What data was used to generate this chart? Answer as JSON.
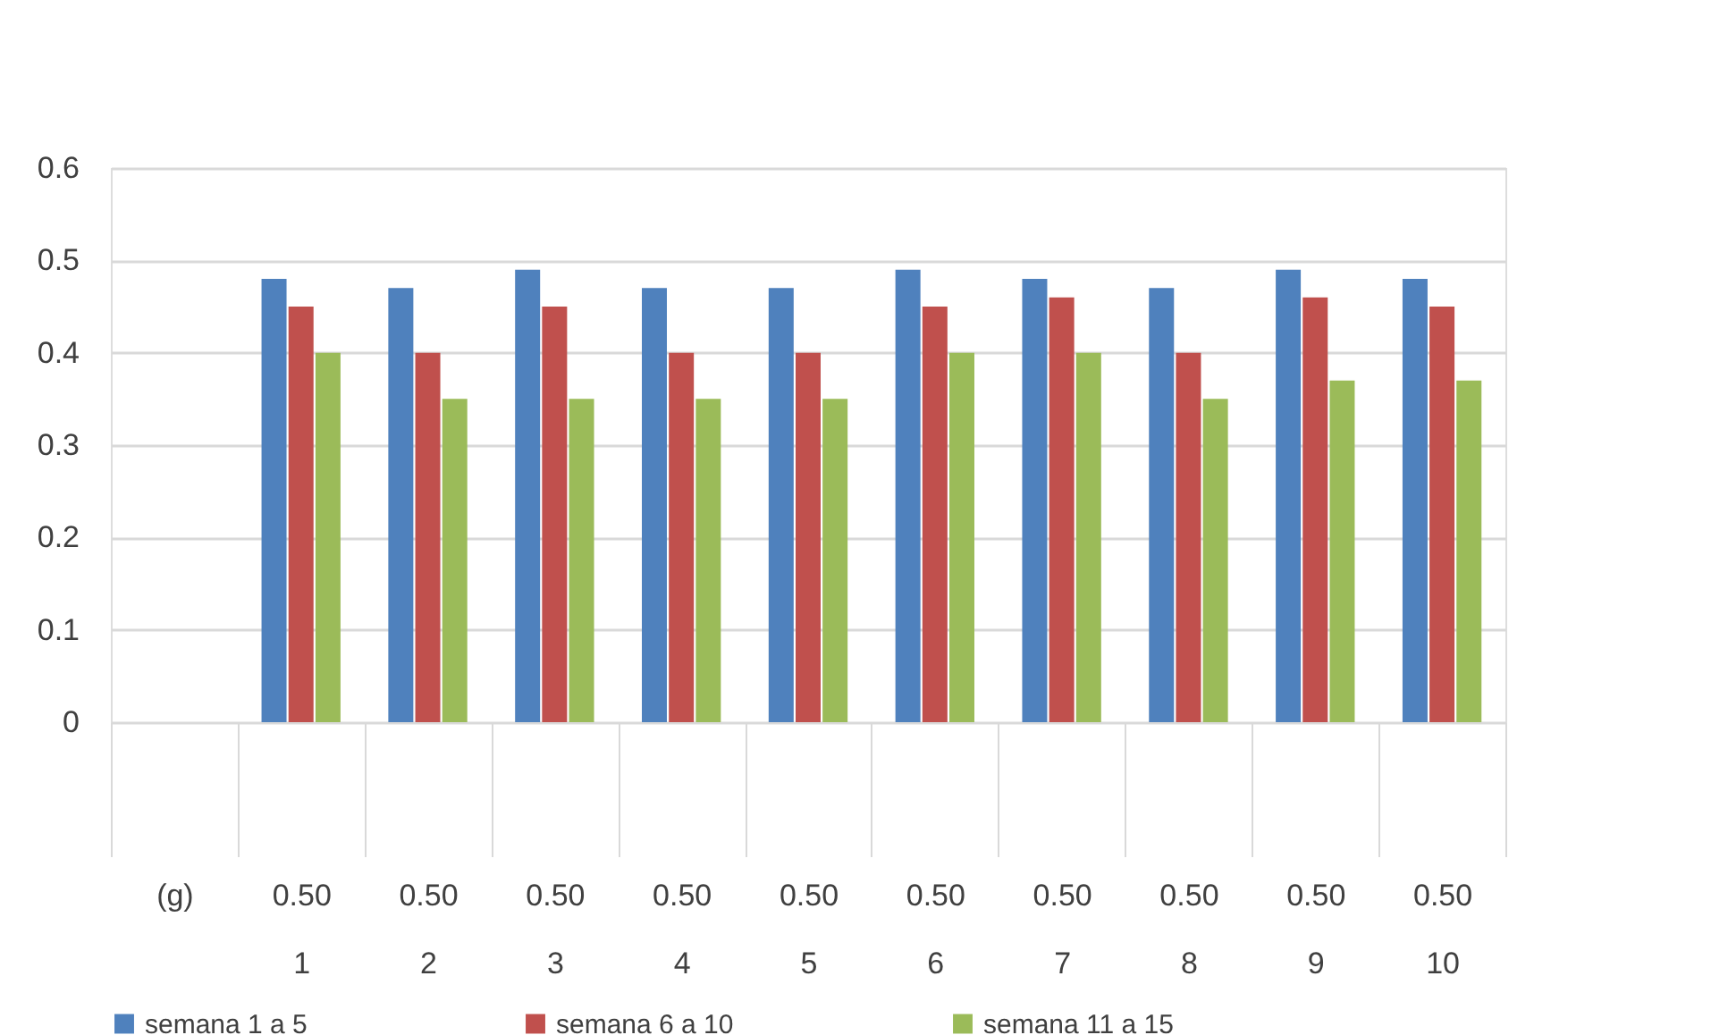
{
  "chart_data": {
    "type": "bar",
    "categories": [
      "(g)",
      "0.50\n1",
      "0.50\n2",
      "0.50\n3",
      "0.50\n4",
      "0.50\n5",
      "0.50\n6",
      "0.50\n7",
      "0.50\n8",
      "0.50\n9",
      "0.50\n10"
    ],
    "series": [
      {
        "name": "semana 1 a 5",
        "color": "#4f81bd",
        "values": [
          null,
          0.48,
          0.47,
          0.49,
          0.47,
          0.47,
          0.49,
          0.48,
          0.47,
          0.49,
          0.48
        ]
      },
      {
        "name": "semana 6 a 10",
        "color": "#c0504d",
        "values": [
          null,
          0.45,
          0.4,
          0.45,
          0.4,
          0.4,
          0.45,
          0.46,
          0.4,
          0.46,
          0.45
        ]
      },
      {
        "name": "semana 11 a 15",
        "color": "#9bbb59",
        "values": [
          null,
          0.4,
          0.35,
          0.35,
          0.35,
          0.35,
          0.4,
          0.4,
          0.35,
          0.37,
          0.37
        ]
      }
    ],
    "ylim": [
      0,
      0.6
    ],
    "yticks": [
      0,
      0.1,
      0.2,
      0.3,
      0.4,
      0.5,
      0.6
    ],
    "grid": "y",
    "legend": "bottom"
  }
}
